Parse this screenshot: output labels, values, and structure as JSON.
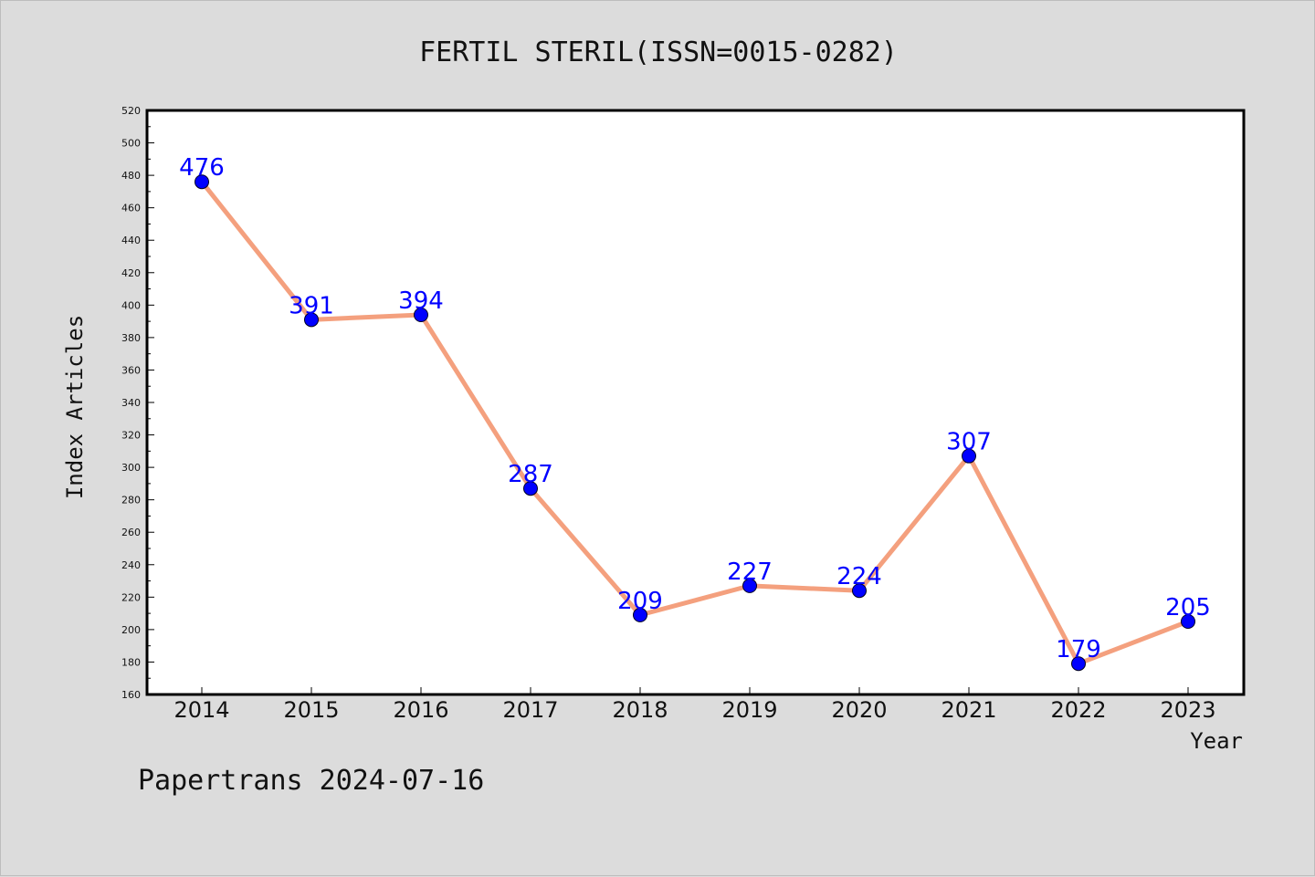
{
  "chart_data": {
    "type": "line",
    "title": "FERTIL STERIL(ISSN=0015-0282)",
    "xlabel": "Year",
    "ylabel": "Index Articles",
    "categories": [
      "2014",
      "2015",
      "2016",
      "2017",
      "2018",
      "2019",
      "2020",
      "2021",
      "2022",
      "2023"
    ],
    "series": [
      {
        "values": [
          476,
          391,
          394,
          287,
          209,
          227,
          224,
          307,
          179,
          205
        ]
      }
    ],
    "ylim": [
      160,
      520
    ],
    "yticks": [
      160,
      180,
      200,
      220,
      240,
      260,
      280,
      300,
      320,
      340,
      360,
      380,
      400,
      420,
      440,
      460,
      480,
      500,
      520
    ],
    "grid": false,
    "data_labels": true,
    "colors": {
      "line": "#f4a07e",
      "marker": "#0000ff",
      "label": "#0000ff",
      "background": "#dcdcdc",
      "plot_area": "#ffffff"
    }
  },
  "footer": "Papertrans 2024-07-16"
}
